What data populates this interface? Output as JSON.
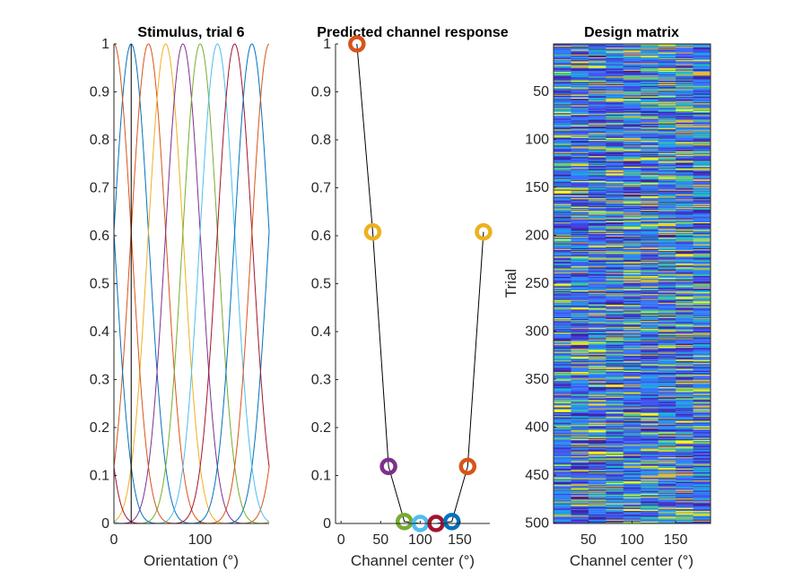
{
  "chart_data": [
    {
      "type": "line",
      "title": "Stimulus, trial 6",
      "xlabel": "Orientation (°)",
      "ylabel": "",
      "xlim": [
        0,
        180
      ],
      "ylim": [
        0,
        1
      ],
      "xticks": [
        "0",
        "100"
      ],
      "yticks": [
        "0",
        "0.1",
        "0.2",
        "0.3",
        "0.4",
        "0.5",
        "0.6",
        "0.7",
        "0.8",
        "0.9",
        "1"
      ],
      "channel_centers": [
        20,
        40,
        60,
        80,
        100,
        120,
        140,
        160,
        180
      ],
      "channel_function": "cos(pi*(x-center)/180)^8",
      "stimulus_orientation": 20,
      "colors": [
        "#0072BD",
        "#D95319",
        "#EDB120",
        "#7E2F8E",
        "#77AC30",
        "#4DBEEE",
        "#A2142F",
        "#0072BD",
        "#D95319"
      ]
    },
    {
      "type": "scatter",
      "title": "Predicted channel response",
      "xlabel": "Channel center (°)",
      "ylabel": "",
      "xlim": [
        -7,
        188
      ],
      "ylim": [
        0,
        1
      ],
      "xticks": [
        "0",
        "50",
        "100",
        "150"
      ],
      "yticks": [
        "0",
        "0.1",
        "0.2",
        "0.3",
        "0.4",
        "0.5",
        "0.6",
        "0.7",
        "0.8",
        "0.9",
        "1"
      ],
      "x": [
        20,
        40,
        60,
        80,
        100,
        120,
        140,
        160,
        180
      ],
      "y": [
        1.0,
        0.608,
        0.119,
        0.004,
        0.0,
        0.0,
        0.004,
        0.119,
        0.608
      ],
      "colors": [
        "#D95319",
        "#EDB120",
        "#7E2F8E",
        "#77AC30",
        "#4DBEEE",
        "#A2142F",
        "#0072BD",
        "#D95319",
        "#EDB120"
      ]
    },
    {
      "type": "heatmap",
      "title": "Design matrix",
      "xlabel": "Channel center (°)",
      "ylabel": "Trial",
      "xlim": [
        10,
        190
      ],
      "ylim": [
        500,
        1
      ],
      "xticks": [
        "50",
        "100",
        "150"
      ],
      "yticks": [
        "50",
        "100",
        "150",
        "200",
        "250",
        "300",
        "350",
        "400",
        "450",
        "500"
      ],
      "rows": 500,
      "columns": 9,
      "colormap": [
        "#3E26A8",
        "#4743E0",
        "#3E6DFF",
        "#2C8EF2",
        "#1CAADF",
        "#1CC0C0",
        "#48CB8D",
        "#9CCA4B",
        "#E4BC2E",
        "#F9FB15"
      ]
    }
  ]
}
